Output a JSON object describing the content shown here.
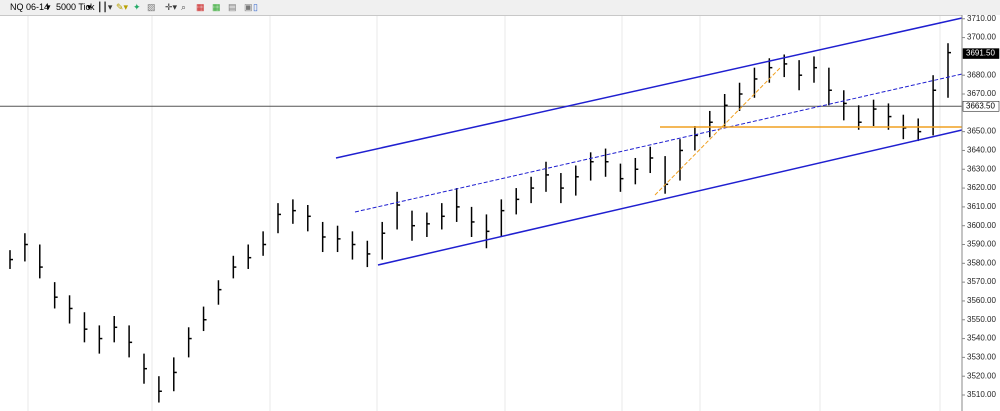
{
  "toolbar": {
    "instrument": "NQ 06-14",
    "interval": "5000 Tick"
  },
  "chart_data": {
    "type": "hlc",
    "high": [
      3587,
      3596,
      3590,
      3570,
      3563,
      3554,
      3547,
      3552,
      3547,
      3532,
      3520,
      3530,
      3546,
      3557,
      3571,
      3584,
      3590,
      3597,
      3612,
      3614,
      3611,
      3602,
      3600,
      3597,
      3592,
      3602,
      3618,
      3608,
      3607,
      3612,
      3620,
      3610,
      3606,
      3614,
      3620,
      3626,
      3634,
      3628,
      3632,
      3639,
      3641,
      3633,
      3636,
      3642,
      3637,
      3646,
      3653,
      3661,
      3670,
      3676,
      3684,
      3689,
      3691,
      3688,
      3690,
      3684,
      3672,
      3664,
      3667,
      3665,
      3659,
      3657,
      3680,
      3697
    ],
    "low": [
      3577,
      3581,
      3572,
      3556,
      3548,
      3538,
      3532,
      3538,
      3530,
      3516,
      3506,
      3512,
      3530,
      3544,
      3558,
      3572,
      3577,
      3584,
      3596,
      3601,
      3597,
      3586,
      3586,
      3582,
      3578,
      3582,
      3598,
      3592,
      3594,
      3598,
      3602,
      3594,
      3588,
      3594,
      3606,
      3612,
      3618,
      3612,
      3616,
      3624,
      3626,
      3618,
      3622,
      3628,
      3617,
      3624,
      3640,
      3647,
      3652,
      3661,
      3668,
      3676,
      3679,
      3672,
      3676,
      3664,
      3656,
      3651,
      3653,
      3651,
      3646,
      3645,
      3648,
      3668
    ],
    "close": [
      3582,
      3590,
      3578,
      3562,
      3556,
      3545,
      3540,
      3546,
      3538,
      3524,
      3512,
      3522,
      3540,
      3550,
      3566,
      3578,
      3583,
      3590,
      3606,
      3608,
      3605,
      3594,
      3593,
      3590,
      3585,
      3596,
      3611,
      3600,
      3601,
      3605,
      3610,
      3602,
      3597,
      3608,
      3614,
      3620,
      3627,
      3620,
      3626,
      3634,
      3634,
      3625,
      3630,
      3636,
      3622,
      3640,
      3648,
      3655,
      3664,
      3670,
      3678,
      3684,
      3686,
      3680,
      3684,
      3672,
      3665,
      3655,
      3662,
      3658,
      3652,
      3650,
      3672,
      3692
    ],
    "ylim": [
      3501.5,
      3712
    ],
    "yticks": [
      {
        "value": 3710,
        "label": "3710.00"
      },
      {
        "value": 3700,
        "label": "3700.00"
      },
      {
        "value": 3680,
        "label": "3680.00"
      },
      {
        "value": 3670,
        "label": "3670.00"
      },
      {
        "value": 3650,
        "label": "3650.00"
      },
      {
        "value": 3640,
        "label": "3640.00"
      },
      {
        "value": 3630,
        "label": "3630.00"
      },
      {
        "value": 3620,
        "label": "3620.00"
      },
      {
        "value": 3610,
        "label": "3610.00"
      },
      {
        "value": 3600,
        "label": "3600.00"
      },
      {
        "value": 3590,
        "label": "3590.00"
      },
      {
        "value": 3580,
        "label": "3580.00"
      },
      {
        "value": 3570,
        "label": "3570.00"
      },
      {
        "value": 3560,
        "label": "3560.00"
      },
      {
        "value": 3550,
        "label": "3550.00"
      },
      {
        "value": 3540,
        "label": "3540.00"
      },
      {
        "value": 3530,
        "label": "3530.00"
      },
      {
        "value": 3520,
        "label": "3520.00"
      },
      {
        "value": 3510,
        "label": "3510.00"
      }
    ],
    "last_price": {
      "value": 3691.5,
      "label": "3691.50"
    },
    "price_line": {
      "value": 3663.5,
      "label": "3663.50"
    },
    "color": "#000000"
  }
}
